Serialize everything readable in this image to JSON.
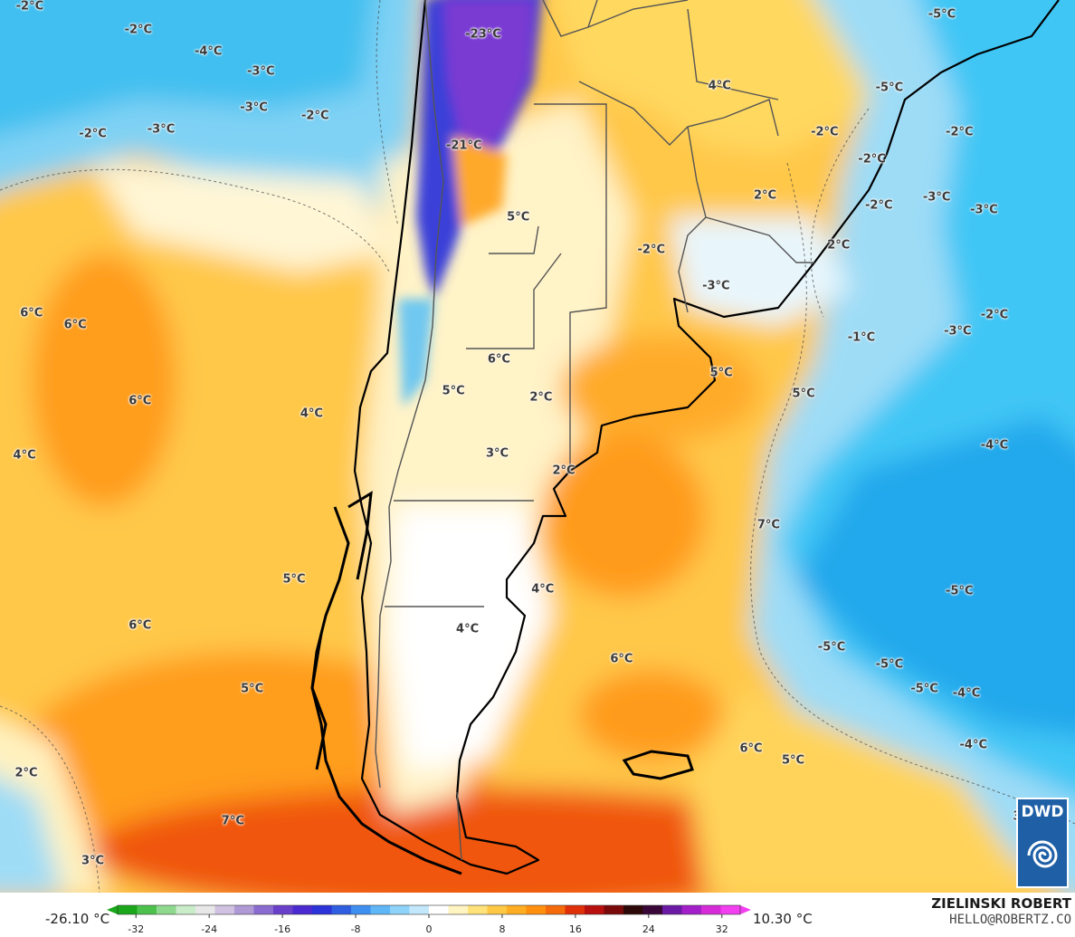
{
  "map": {
    "unit": "°C",
    "labels": [
      {
        "text": "-2°C",
        "lon": -95.2,
        "lat": -20.0
      },
      {
        "text": "-2°C",
        "lon": -89.0,
        "lat": -21.4
      },
      {
        "text": "-4°C",
        "lon": -85.0,
        "lat": -22.7
      },
      {
        "text": "-3°C",
        "lon": -82.0,
        "lat": -23.9
      },
      {
        "text": "-3°C",
        "lon": -82.4,
        "lat": -26.1
      },
      {
        "text": "-2°C",
        "lon": -78.9,
        "lat": -26.6
      },
      {
        "text": "-2°C",
        "lon": -91.6,
        "lat": -27.7
      },
      {
        "text": "-3°C",
        "lon": -87.7,
        "lat": -27.4
      },
      {
        "text": "-23°C",
        "lon": -69.3,
        "lat": -21.7
      },
      {
        "text": "-21°C",
        "lon": -70.4,
        "lat": -28.4
      },
      {
        "text": "4°C",
        "lon": -55.8,
        "lat": -24.8
      },
      {
        "text": "-5°C",
        "lon": -43.1,
        "lat": -20.5
      },
      {
        "text": "-5°C",
        "lon": -46.1,
        "lat": -24.9
      },
      {
        "text": "-2°C",
        "lon": -49.8,
        "lat": -27.6
      },
      {
        "text": "-2°C",
        "lon": -47.1,
        "lat": -29.2
      },
      {
        "text": "-2°C",
        "lon": -42.1,
        "lat": -27.6
      },
      {
        "text": "2°C",
        "lon": -53.2,
        "lat": -31.4
      },
      {
        "text": "-2°C",
        "lon": -46.7,
        "lat": -32.0
      },
      {
        "text": "-3°C",
        "lon": -43.4,
        "lat": -31.5
      },
      {
        "text": "-3°C",
        "lon": -40.7,
        "lat": -32.3
      },
      {
        "text": "5°C",
        "lon": -67.3,
        "lat": -32.7
      },
      {
        "text": "-2°C",
        "lon": -59.7,
        "lat": -34.7
      },
      {
        "text": "2°C",
        "lon": -49.0,
        "lat": -34.4
      },
      {
        "text": "-3°C",
        "lon": -56.0,
        "lat": -36.9
      },
      {
        "text": "6°C",
        "lon": -95.1,
        "lat": -38.5
      },
      {
        "text": "6°C",
        "lon": -92.6,
        "lat": -39.2
      },
      {
        "text": "6°C",
        "lon": -68.4,
        "lat": -41.3
      },
      {
        "text": "5°C",
        "lon": -71.0,
        "lat": -43.2
      },
      {
        "text": "2°C",
        "lon": -66.0,
        "lat": -43.6
      },
      {
        "text": "5°C",
        "lon": -55.7,
        "lat": -42.1
      },
      {
        "text": "5°C",
        "lon": -51.0,
        "lat": -43.4
      },
      {
        "text": "-1°C",
        "lon": -47.7,
        "lat": -40.0
      },
      {
        "text": "-3°C",
        "lon": -42.2,
        "lat": -39.6
      },
      {
        "text": "-2°C",
        "lon": -40.1,
        "lat": -38.6
      },
      {
        "text": "6°C",
        "lon": -88.9,
        "lat": -43.8
      },
      {
        "text": "4°C",
        "lon": -79.1,
        "lat": -44.6
      },
      {
        "text": "4°C",
        "lon": -95.5,
        "lat": -47.1
      },
      {
        "text": "3°C",
        "lon": -68.5,
        "lat": -47.0
      },
      {
        "text": "2°C",
        "lon": -64.7,
        "lat": -48.0
      },
      {
        "text": "-4°C",
        "lon": -40.1,
        "lat": -46.5
      },
      {
        "text": "7°C",
        "lon": -53.0,
        "lat": -51.3
      },
      {
        "text": "5°C",
        "lon": -80.1,
        "lat": -54.6
      },
      {
        "text": "4°C",
        "lon": -65.9,
        "lat": -55.2
      },
      {
        "text": "6°C",
        "lon": -88.9,
        "lat": -57.4
      },
      {
        "text": "4°C",
        "lon": -70.2,
        "lat": -57.6
      },
      {
        "text": "-5°C",
        "lon": -42.1,
        "lat": -55.3
      },
      {
        "text": "-5°C",
        "lon": -49.4,
        "lat": -58.7
      },
      {
        "text": "6°C",
        "lon": -61.4,
        "lat": -59.4
      },
      {
        "text": "-5°C",
        "lon": -46.1,
        "lat": -59.7
      },
      {
        "text": "5°C",
        "lon": -82.5,
        "lat": -61.2
      },
      {
        "text": "-5°C",
        "lon": -44.1,
        "lat": -61.2
      },
      {
        "text": "-4°C",
        "lon": -41.7,
        "lat": -61.5
      },
      {
        "text": "6°C",
        "lon": -54.0,
        "lat": -64.8
      },
      {
        "text": "5°C",
        "lon": -51.6,
        "lat": -65.5
      },
      {
        "text": "-4°C",
        "lon": -41.3,
        "lat": -64.6
      },
      {
        "text": "2°C",
        "lon": -95.4,
        "lat": -66.3
      },
      {
        "text": "7°C",
        "lon": -83.6,
        "lat": -69.2
      },
      {
        "text": "3°C",
        "lon": -38.4,
        "lat": -68.9
      },
      {
        "text": "3°C",
        "lon": -91.6,
        "lat": -71.6
      }
    ]
  },
  "legend": {
    "min_value": "-26.10 °C",
    "max_value": "10.30 °C",
    "ticks": [
      "-32",
      "-24",
      "-16",
      "-8",
      "0",
      "8",
      "16",
      "24",
      "32"
    ],
    "colors": [
      "#1aa81a",
      "#4cc24c",
      "#8fd98f",
      "#c9ecc9",
      "#e8e8e8",
      "#d0c2e0",
      "#b09ad6",
      "#8a6bd0",
      "#6a3fc9",
      "#4b2bd1",
      "#2b33d9",
      "#2f5fe0",
      "#3f8ff0",
      "#5fb7f8",
      "#8fd3fb",
      "#c3e8fc",
      "#ffffff",
      "#fff4c2",
      "#ffe27a",
      "#ffc844",
      "#ffad22",
      "#ff8f0f",
      "#f56a0a",
      "#e0300a",
      "#b80f0f",
      "#7a0a0a",
      "#2e0909",
      "#3a0838",
      "#6b1aa5",
      "#a31fc9",
      "#d62bd8",
      "#f23ff0"
    ]
  },
  "author": {
    "name": "ZIELINSKI ROBERT",
    "email": "HELLO@ROBERTZ.CO"
  },
  "logo": {
    "text": "DWD",
    "color": "#1f5fa6"
  },
  "colors": {
    "ocean_warm": "#ffc84a",
    "ocean_hot": "#ff9d1c",
    "ocean_cold": "#3fc6f5",
    "ocean_cool": "#9edcf6",
    "land_pale": "#fff3c8",
    "andes": "#6a33cf",
    "coast": "#000000",
    "border": "#555555"
  }
}
